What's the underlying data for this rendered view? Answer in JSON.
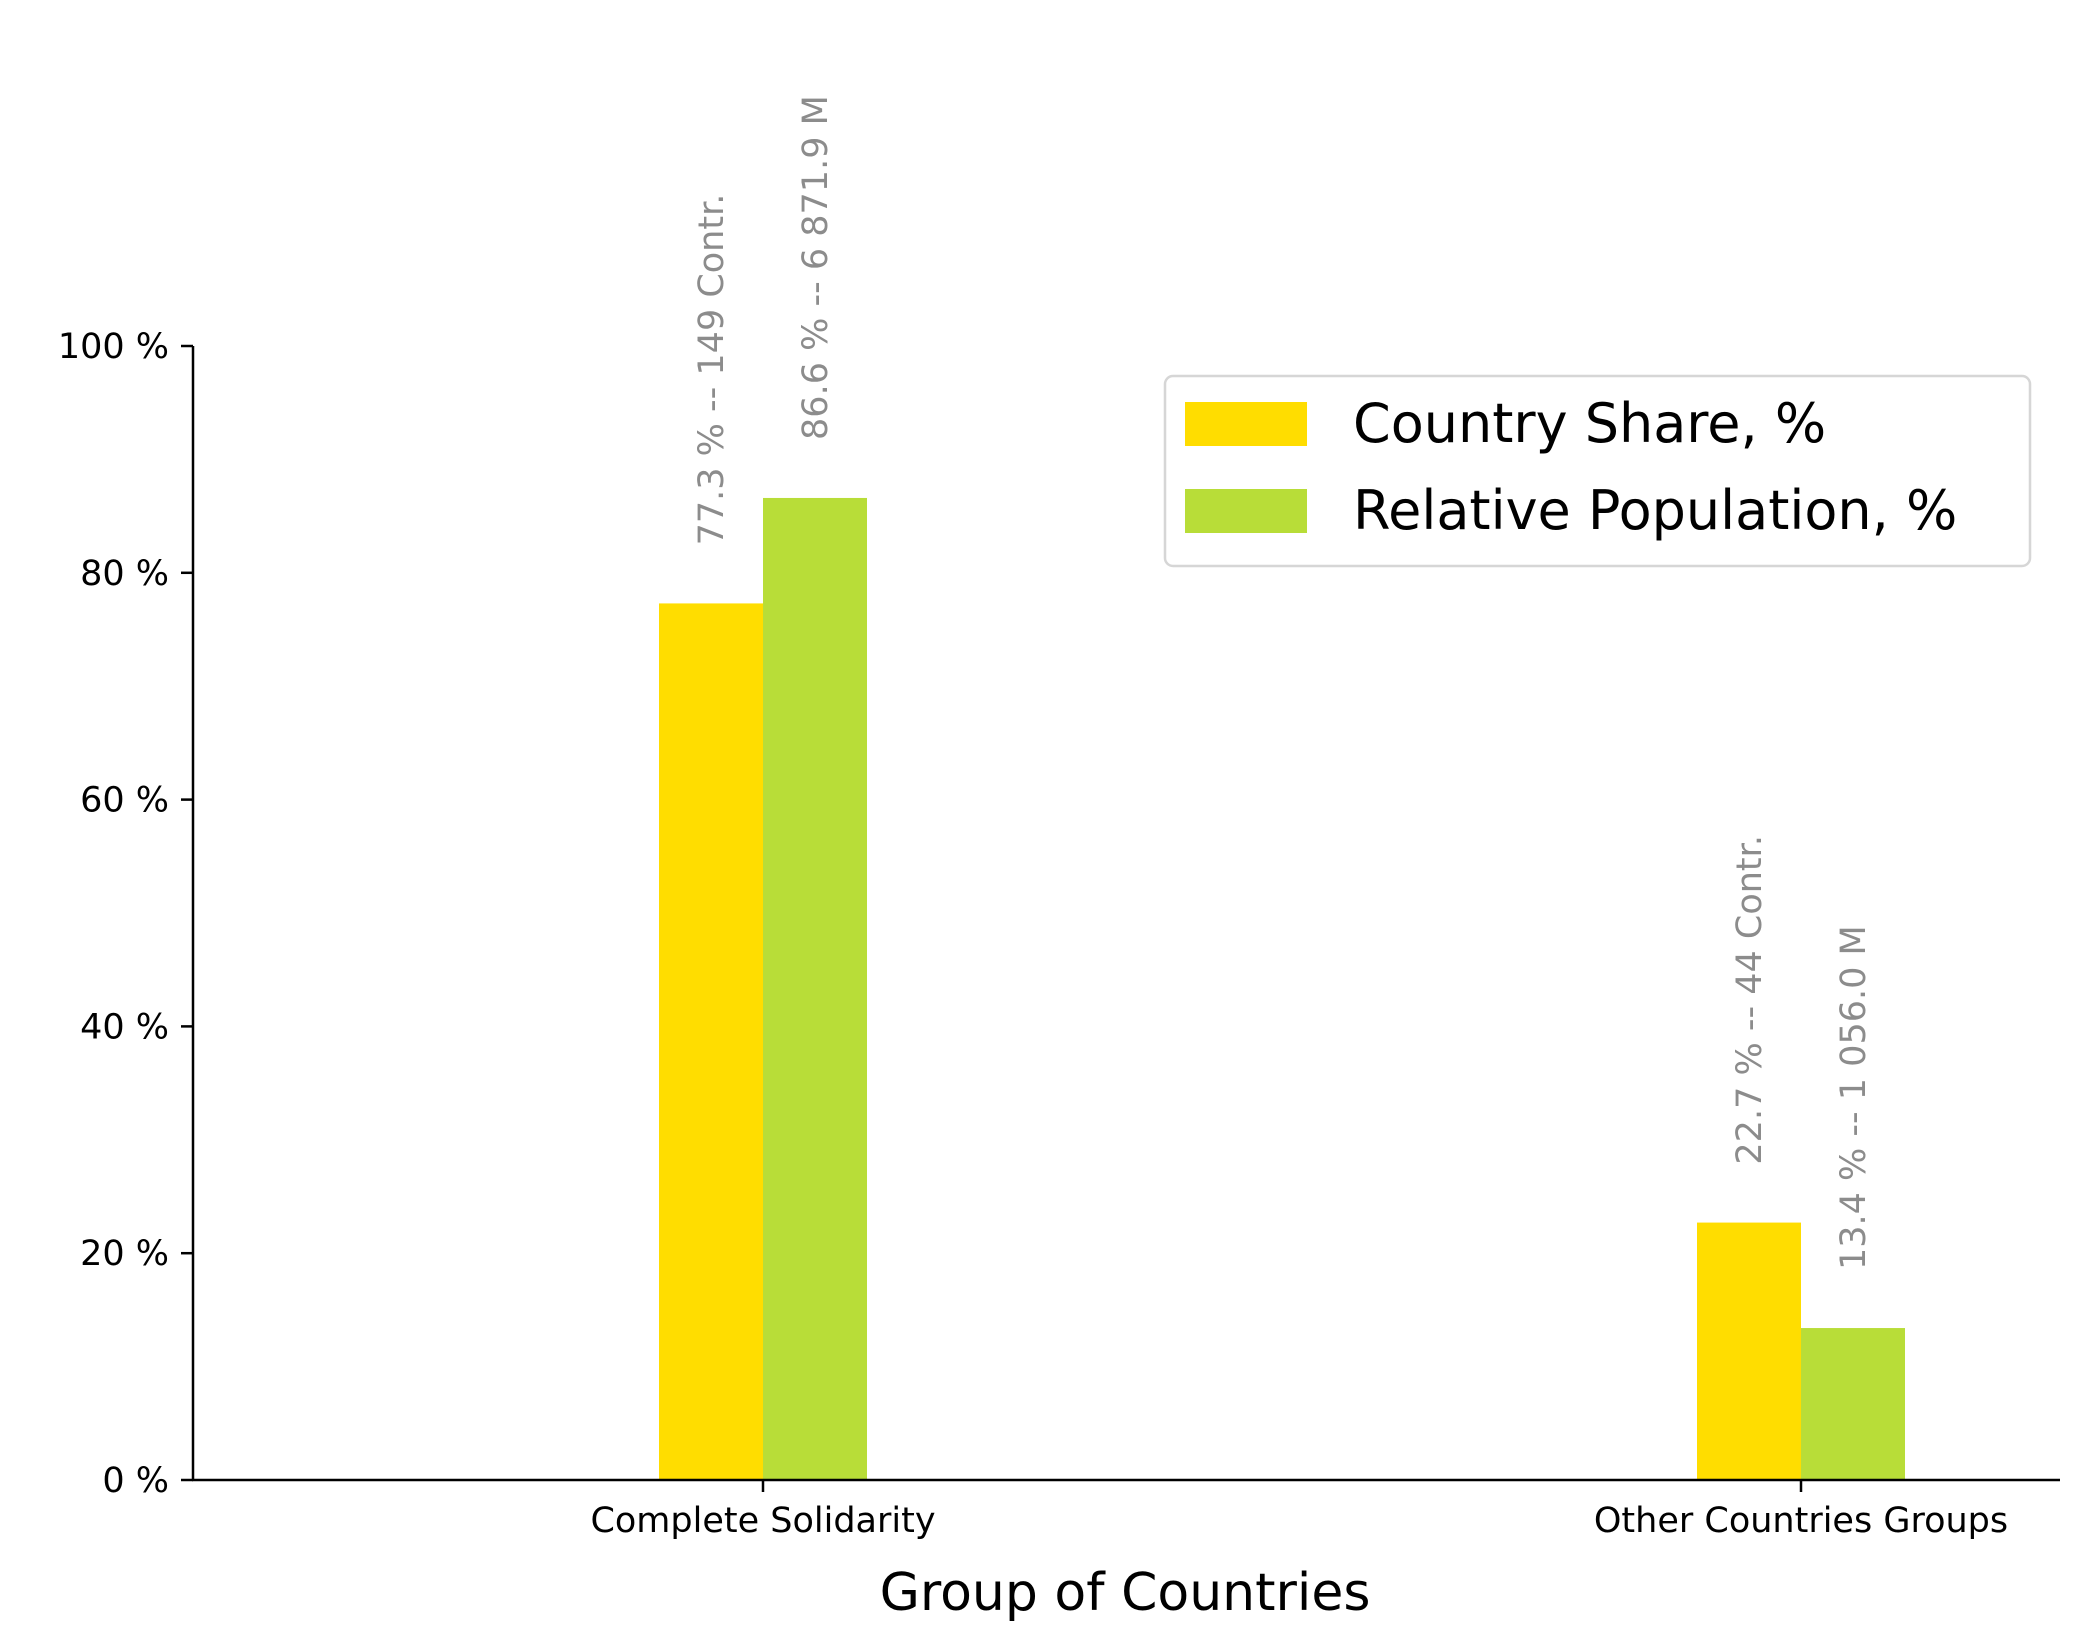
{
  "chart_data": {
    "type": "bar",
    "title": "",
    "xlabel": "Group of Countries",
    "ylabel": "",
    "categories": [
      "Complete Solidarity",
      "Other Countries Groups"
    ],
    "series": [
      {
        "name": "Country Share, %",
        "color": "#FFDD00",
        "values": [
          77.3,
          22.7
        ],
        "labels": [
          "77.3 % -- 149 Contr.",
          "22.7 % -- 44 Contr."
        ]
      },
      {
        "name": "Relative Population, %",
        "color": "#B8DD38",
        "values": [
          86.6,
          13.4
        ],
        "labels": [
          "86.6 % -- 6 871.9 M",
          "13.4 % -- 1 056.0 M"
        ]
      }
    ],
    "ylim": [
      0,
      100
    ],
    "yticks": [
      0,
      20,
      40,
      60,
      80,
      100
    ],
    "ytick_labels": [
      "0 %",
      "20 %",
      "40 %",
      "60 %",
      "80 %",
      "100 %"
    ],
    "grid": false,
    "legend_position": "top-right",
    "label_color": "#8c8c8c"
  }
}
